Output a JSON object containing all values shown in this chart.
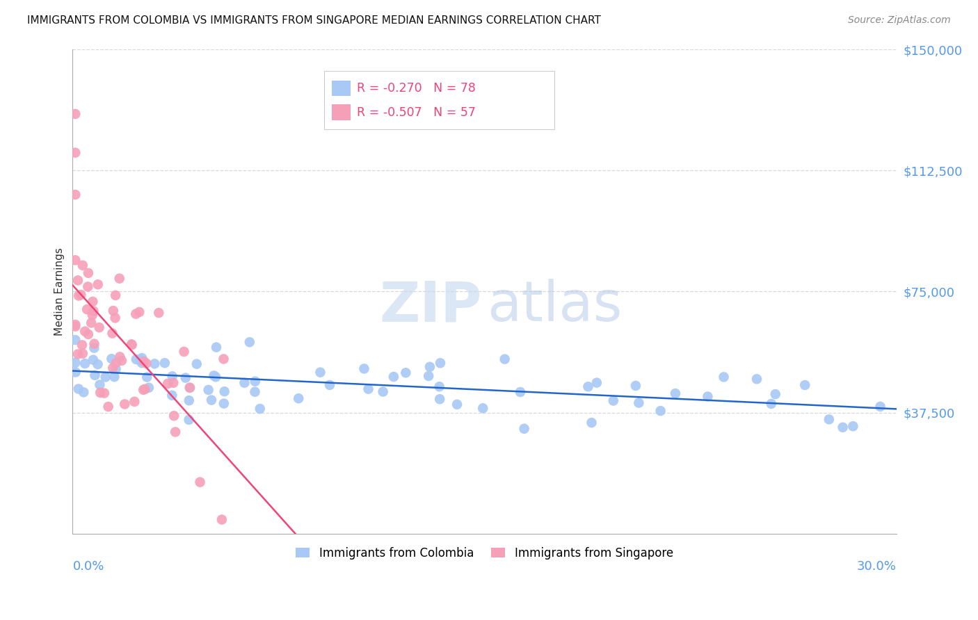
{
  "title": "IMMIGRANTS FROM COLOMBIA VS IMMIGRANTS FROM SINGAPORE MEDIAN EARNINGS CORRELATION CHART",
  "source": "Source: ZipAtlas.com",
  "ylabel": "Median Earnings",
  "xlim": [
    0.0,
    0.3
  ],
  "ylim": [
    0,
    150000
  ],
  "colombia_R": -0.27,
  "colombia_N": 78,
  "singapore_R": -0.507,
  "singapore_N": 57,
  "colombia_color": "#a8c8f5",
  "singapore_color": "#f5a0b8",
  "colombia_line_color": "#2266cc",
  "singapore_line_color": "#ee4477",
  "yticks": [
    0,
    37500,
    75000,
    112500,
    150000
  ],
  "ytick_labels": [
    "",
    "$37,500",
    "$75,000",
    "$112,500",
    "$150,000"
  ],
  "watermark_zip_color": "#c5d8f0",
  "watermark_atlas_color": "#b0c8e8",
  "grid_color": "#d8d8d8",
  "title_color": "#111111",
  "source_color": "#888888",
  "ylabel_color": "#333333",
  "axis_color": "#aaaaaa",
  "tick_label_color": "#5599ee",
  "legend_edge_color": "#cccccc"
}
